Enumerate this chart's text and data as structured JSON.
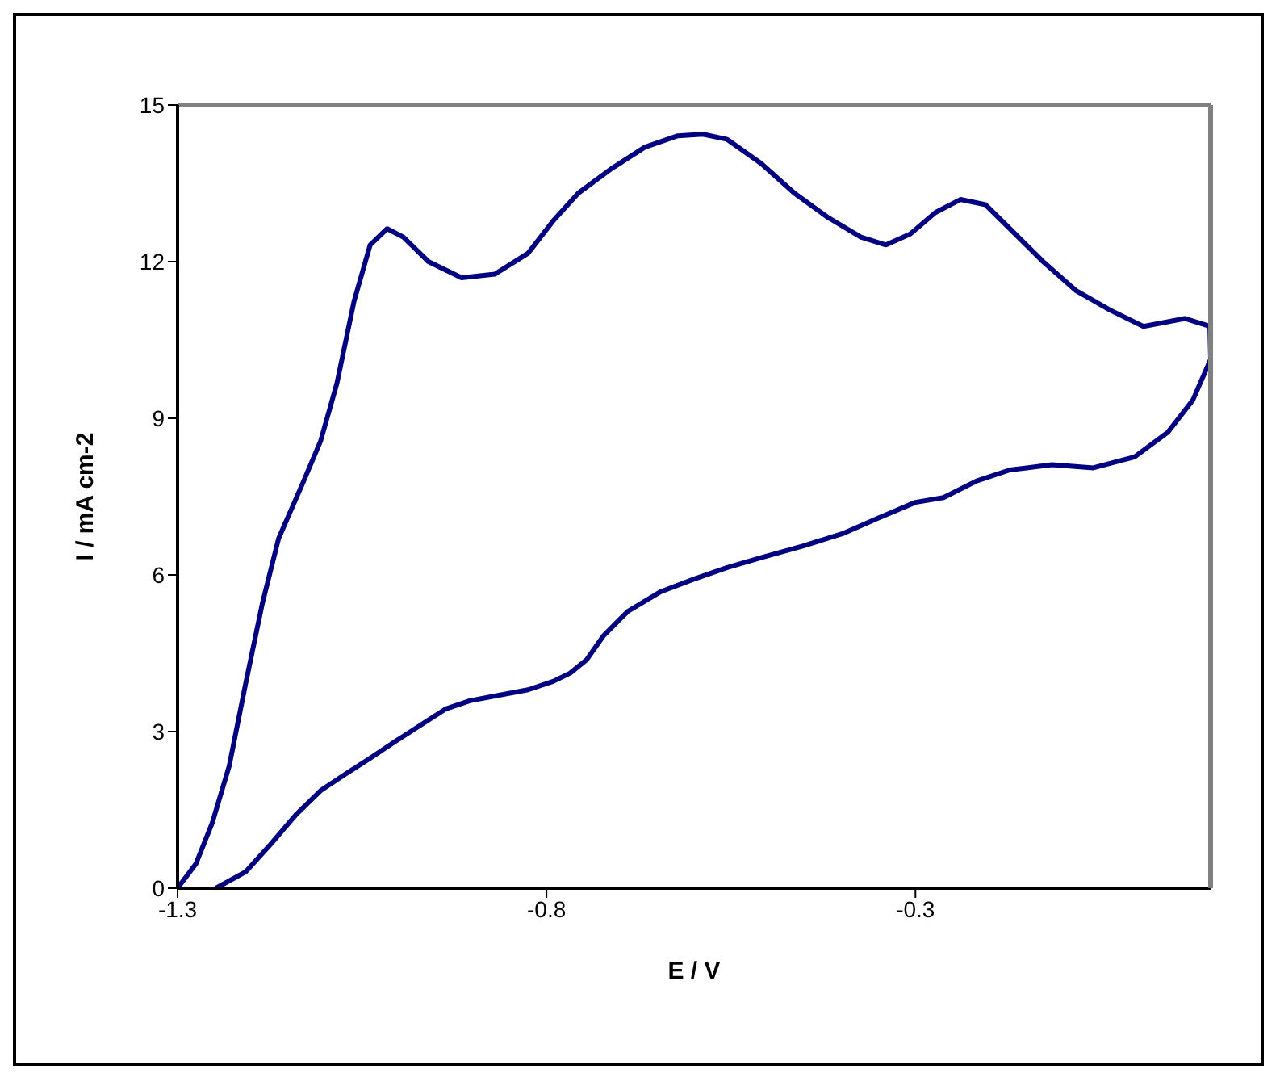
{
  "chart_data": {
    "type": "line",
    "xlabel": "E / V",
    "ylabel": "I / mA cm-2",
    "xlim": [
      -1.3,
      0.1
    ],
    "xticks": [
      -1.3,
      -0.8,
      -0.3
    ],
    "ylim": [
      0,
      15
    ],
    "yticks": [
      0,
      3,
      6,
      9,
      12,
      15
    ],
    "legend": false,
    "marker": "none",
    "line_style": "solid",
    "x": [
      -1.3,
      -1.275,
      -1.253,
      -1.23,
      -1.208,
      -1.185,
      -1.163,
      -1.129,
      -1.106,
      -1.084,
      -1.061,
      -1.039,
      -1.016,
      -0.994,
      -0.96,
      -0.915,
      -0.87,
      -0.825,
      -0.791,
      -0.757,
      -0.712,
      -0.667,
      -0.622,
      -0.588,
      -0.555,
      -0.509,
      -0.464,
      -0.419,
      -0.374,
      -0.34,
      -0.307,
      -0.273,
      -0.239,
      -0.205,
      -0.172,
      -0.127,
      -0.082,
      -0.036,
      0.009,
      0.065,
      0.099,
      0.1,
      0.076,
      0.042,
      -0.003,
      -0.059,
      -0.115,
      -0.172,
      -0.217,
      -0.262,
      -0.3,
      -0.352,
      -0.397,
      -0.453,
      -0.509,
      -0.555,
      -0.6,
      -0.645,
      -0.69,
      -0.723,
      -0.746,
      -0.768,
      -0.791,
      -0.825,
      -0.87,
      -0.904,
      -0.937,
      -0.971,
      -1.005,
      -1.039,
      -1.073,
      -1.106,
      -1.14,
      -1.174,
      -1.208,
      -1.248
    ],
    "series": [
      {
        "color": "#000080",
        "values": [
          0,
          0.47,
          1.25,
          2.34,
          3.9,
          5.46,
          6.7,
          7.8,
          8.57,
          9.67,
          11.23,
          12.32,
          12.63,
          12.47,
          12.0,
          11.69,
          11.76,
          12.16,
          12.78,
          13.31,
          13.78,
          14.19,
          14.41,
          14.44,
          14.34,
          13.88,
          13.31,
          12.85,
          12.47,
          12.32,
          12.53,
          12.94,
          13.19,
          13.09,
          12.63,
          12.0,
          11.44,
          11.07,
          10.76,
          10.91,
          10.76,
          10.13,
          9.35,
          8.73,
          8.26,
          8.05,
          8.11,
          8.01,
          7.8,
          7.48,
          7.39,
          7.08,
          6.8,
          6.55,
          6.33,
          6.14,
          5.92,
          5.68,
          5.3,
          4.83,
          4.37,
          4.12,
          3.96,
          3.8,
          3.68,
          3.59,
          3.43,
          3.12,
          2.81,
          2.49,
          2.18,
          1.87,
          1.4,
          0.84,
          0.31,
          0
        ]
      }
    ]
  }
}
